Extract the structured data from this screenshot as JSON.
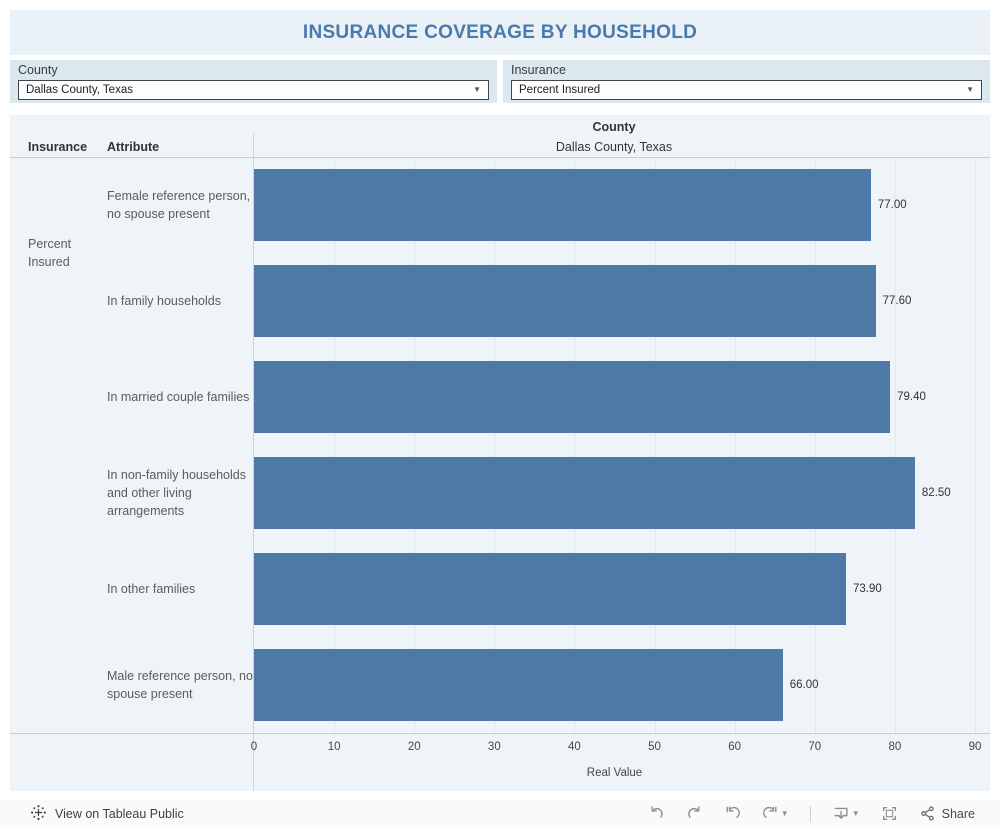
{
  "title": "INSURANCE COVERAGE BY HOUSEHOLD",
  "filters": {
    "county": {
      "label": "County",
      "value": "Dallas County, Texas"
    },
    "insurance": {
      "label": "Insurance",
      "value": "Percent Insured"
    }
  },
  "table": {
    "insurance_header": "Insurance",
    "attribute_header": "Attribute",
    "county_header": "County",
    "county_value": "Dallas County, Texas",
    "group_label": "Percent Insured"
  },
  "chart_data": {
    "type": "bar",
    "orientation": "horizontal",
    "series_label": "Percent Insured",
    "categories": [
      "Female reference person, no spouse present",
      "In family households",
      "In married couple families",
      "In non-family households and other living arrangements",
      "In other families",
      "Male reference person, no spouse present"
    ],
    "values": [
      77.0,
      77.6,
      79.4,
      82.5,
      73.9,
      66.0
    ],
    "value_labels": [
      "77.00",
      "77.60",
      "79.40",
      "82.50",
      "73.90",
      "66.00"
    ],
    "xlabel": "Real Value",
    "x_ticks": [
      0,
      10,
      20,
      30,
      40,
      50,
      60,
      70,
      80,
      90
    ],
    "xlim": [
      0,
      90
    ],
    "bar_color": "#4e79a7",
    "grid": true,
    "legend_position": "none"
  },
  "toolbar": {
    "view_label": "View on Tableau Public",
    "share_label": "Share",
    "icons": [
      "tableau-logo",
      "undo",
      "redo",
      "replay",
      "refresh",
      "download-device",
      "fullscreen",
      "share"
    ]
  },
  "colors": {
    "title_text": "#4a7aad",
    "title_bg": "#e9f1f7",
    "filter_bg": "#dce8ef",
    "panel_bg": "#eef4f8",
    "bar": "#4e79a7",
    "toolbar_icon": "#8f8f8f"
  }
}
